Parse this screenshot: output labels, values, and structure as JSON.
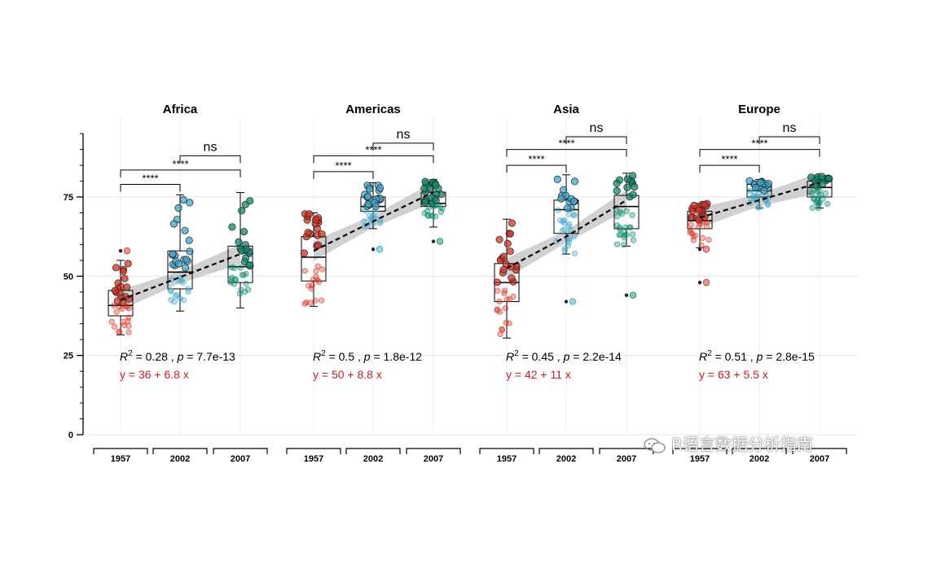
{
  "chart_data": {
    "type": "box",
    "ylim": [
      0,
      95
    ],
    "y_ticks": [
      0,
      25,
      50,
      75
    ],
    "y_tick_labels": [
      "0",
      "25",
      "50",
      "75"
    ],
    "xlabel": "",
    "ylabel": "",
    "grid": true,
    "categories": [
      "1957",
      "2002",
      "2007"
    ],
    "group_colors": [
      "#d7301f",
      "#3fa6cc",
      "#0b8a6f"
    ],
    "trend_color": "#000000",
    "band_color": "#bdbdbd",
    "panels": [
      {
        "title": "Africa",
        "r2_prefix": "R",
        "r2_sup": "2",
        "r2_value": " = 0.28 , ",
        "p_label": "p",
        "p_value": " = 7.7e-13",
        "equation": "y = 36 + 6.8 x",
        "trend": [
          42.5,
          49.7,
          57.0
        ],
        "boxes": [
          {
            "min": 31.5,
            "q1": 37.5,
            "median": 40.8,
            "q3": 45.5,
            "max": 55.0,
            "outliers": [
              58.0
            ]
          },
          {
            "min": 39.0,
            "q1": 46.0,
            "median": 51.3,
            "q3": 58.0,
            "max": 75.7,
            "outliers": []
          },
          {
            "min": 40.0,
            "q1": 48.0,
            "median": 53.0,
            "q3": 59.5,
            "max": 76.4,
            "outliers": []
          }
        ],
        "comparisons": [
          {
            "from": "1957",
            "to": "2002",
            "label": "****",
            "y": 79
          },
          {
            "from": "1957",
            "to": "2007",
            "label": "****",
            "y": 83.5
          },
          {
            "from": "2002",
            "to": "2007",
            "label": "ns",
            "y": 88
          }
        ]
      },
      {
        "title": "Americas",
        "r2_prefix": "R",
        "r2_sup": "2",
        "r2_value": " = 0.5 , ",
        "p_label": "p",
        "p_value": " = 1.8e-12",
        "equation": "y = 50 + 8.8 x",
        "trend": [
          58.0,
          67.3,
          76.5
        ],
        "boxes": [
          {
            "min": 40.5,
            "q1": 48.5,
            "median": 56.0,
            "q3": 62.5,
            "max": 70.0,
            "outliers": []
          },
          {
            "min": 65.0,
            "q1": 70.5,
            "median": 72.0,
            "q3": 75.0,
            "max": 79.5,
            "outliers": [
              58.5
            ]
          },
          {
            "min": 65.5,
            "q1": 72.0,
            "median": 73.0,
            "q3": 76.5,
            "max": 80.5,
            "outliers": [
              61.0
            ]
          }
        ],
        "comparisons": [
          {
            "from": "1957",
            "to": "2002",
            "label": "****",
            "y": 83
          },
          {
            "from": "1957",
            "to": "2007",
            "label": "****",
            "y": 88
          },
          {
            "from": "2002",
            "to": "2007",
            "label": "ns",
            "y": 92
          }
        ]
      },
      {
        "title": "Asia",
        "r2_prefix": "R",
        "r2_sup": "2",
        "r2_value": " = 0.45 , ",
        "p_label": "p",
        "p_value": " = 2.2e-14",
        "equation": "y = 42 + 11 x",
        "trend": [
          52.5,
          62.5,
          74.0
        ],
        "boxes": [
          {
            "min": 30.5,
            "q1": 42.0,
            "median": 48.0,
            "q3": 54.0,
            "max": 68.0,
            "outliers": []
          },
          {
            "min": 57.0,
            "q1": 63.5,
            "median": 71.0,
            "q3": 74.0,
            "max": 82.0,
            "outliers": [
              42.0
            ]
          },
          {
            "min": 59.5,
            "q1": 65.0,
            "median": 72.0,
            "q3": 75.5,
            "max": 82.5,
            "outliers": [
              44.0
            ]
          }
        ],
        "comparisons": [
          {
            "from": "1957",
            "to": "2002",
            "label": "****",
            "y": 85
          },
          {
            "from": "1957",
            "to": "2007",
            "label": "****",
            "y": 90
          },
          {
            "from": "2002",
            "to": "2007",
            "label": "ns",
            "y": 94
          }
        ]
      },
      {
        "title": "Europe",
        "r2_prefix": "R",
        "r2_sup": "2",
        "r2_value": " = 0.51 , ",
        "p_label": "p",
        "p_value": " = 2.8e-15",
        "equation": "y = 63 + 5.5 x",
        "trend": [
          68.5,
          74.0,
          79.5
        ],
        "boxes": [
          {
            "min": 59.0,
            "q1": 65.0,
            "median": 67.5,
            "q3": 70.5,
            "max": 73.0,
            "outliers": [
              58.5,
              48.0
            ]
          },
          {
            "min": 71.5,
            "q1": 75.0,
            "median": 77.0,
            "q3": 79.0,
            "max": 80.5,
            "outliers": []
          },
          {
            "min": 71.5,
            "q1": 75.0,
            "median": 78.0,
            "q3": 80.0,
            "max": 81.5,
            "outliers": []
          }
        ],
        "comparisons": [
          {
            "from": "1957",
            "to": "2002",
            "label": "****",
            "y": 85
          },
          {
            "from": "1957",
            "to": "2007",
            "label": "****",
            "y": 90
          },
          {
            "from": "2002",
            "to": "2007",
            "label": "ns",
            "y": 94
          }
        ]
      }
    ]
  },
  "watermark": {
    "icon": "wechat-icon",
    "text": "R语言数据分析指南"
  }
}
